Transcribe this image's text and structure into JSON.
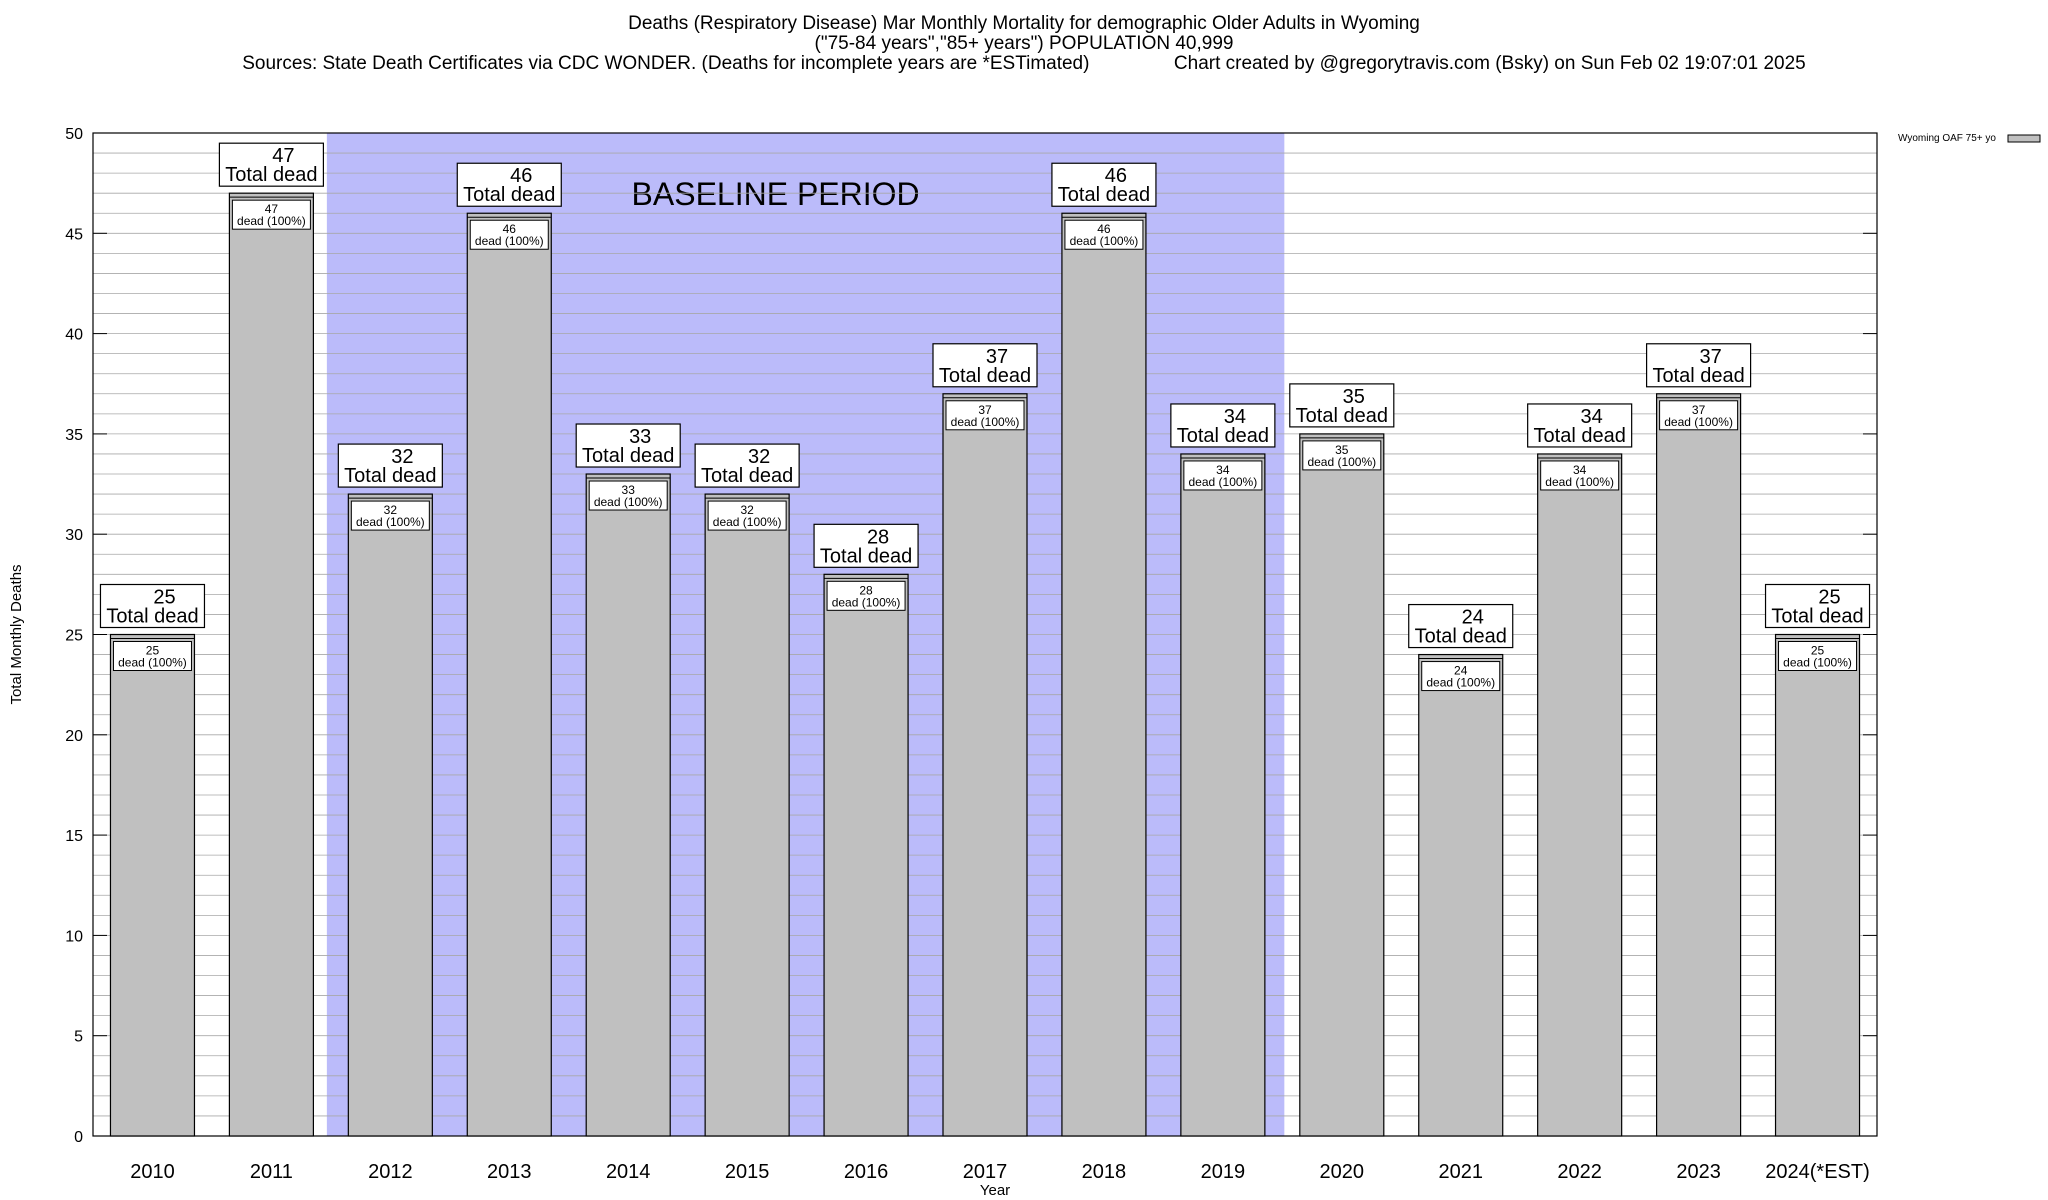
{
  "titles": {
    "line1": "Deaths (Respiratory Disease) Mar Monthly Mortality for demographic Older Adults in Wyoming",
    "line2": "(\"75-84 years\",\"85+ years\") POPULATION 40,999",
    "line3": "Sources: State Death Certificates via CDC WONDER. (Deaths for incomplete years are *ESTimated)                Chart created by @gregorytravis.com (Bsky) on Sun Feb 02 19:07:01 2025"
  },
  "chart_data": {
    "type": "bar",
    "xlabel": "Year",
    "ylabel": "Total Monthly Deaths",
    "ylim": [
      0,
      50
    ],
    "y_major_ticks": [
      0,
      5,
      10,
      15,
      20,
      25,
      30,
      35,
      40,
      45,
      50
    ],
    "y_minor_step": 1,
    "grid": true,
    "legend": {
      "position": "top-right",
      "entries": [
        "Wyoming OAF 75+ yo"
      ]
    },
    "categories": [
      "2010",
      "2011",
      "2012",
      "2013",
      "2014",
      "2015",
      "2016",
      "2017",
      "2018",
      "2019",
      "2020",
      "2021",
      "2022",
      "2023",
      "2024(*EST)"
    ],
    "series": [
      {
        "name": "Wyoming OAF 75+ yo",
        "values": [
          25,
          47,
          32,
          46,
          33,
          32,
          28,
          37,
          46,
          34,
          35,
          24,
          34,
          37,
          25
        ]
      }
    ],
    "top_label_suffix": "Total dead",
    "inner_label_suffix": "dead (100%)",
    "baseline": {
      "label": "BASELINE PERIOD",
      "from": "2012",
      "to": "2019"
    },
    "colors": {
      "bar": "#c0c0c0",
      "baseline": "#bbbbfa",
      "grid": "#a8a8a8"
    }
  }
}
